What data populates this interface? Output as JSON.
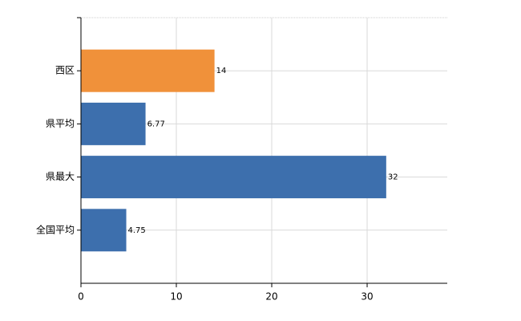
{
  "chart_data": {
    "type": "bar",
    "orientation": "horizontal",
    "categories": [
      "西区",
      "県平均",
      "県最大",
      "全国平均"
    ],
    "values": [
      14,
      6.77,
      32,
      4.75
    ],
    "colors": [
      "#f0913a",
      "#3d6fad",
      "#3d6fad",
      "#3d6fad"
    ],
    "xlim": [
      0,
      38.4
    ],
    "xticks": [
      0,
      10,
      20,
      30
    ],
    "grid": true
  }
}
